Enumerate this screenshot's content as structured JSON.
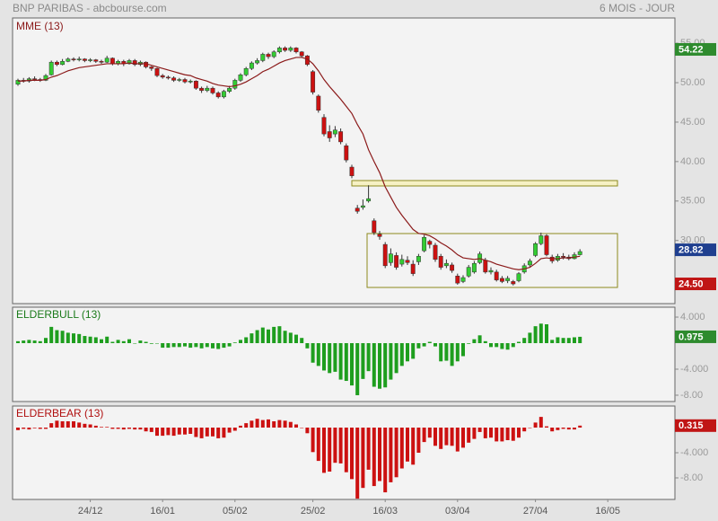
{
  "header": {
    "left": "BNP PARIBAS - abcbourse.com",
    "right": "6 MOIS - JOUR"
  },
  "chart_data": [
    {
      "type": "candlestick",
      "title": "MME (13)",
      "title_color": "#8b1a1a",
      "up_color": "#33cc33",
      "down_color": "#cc1111",
      "outline": "#333333",
      "ylim": [
        22,
        58.2
      ],
      "yticks": [
        {
          "value": 55,
          "label": "55.00"
        },
        {
          "value": 50,
          "label": "50.00"
        },
        {
          "value": 45,
          "label": "45.00"
        },
        {
          "value": 40,
          "label": "40.00"
        },
        {
          "value": 35,
          "label": "35.00"
        },
        {
          "value": 30,
          "label": "30.00"
        }
      ],
      "open": [
        49.8,
        50.3,
        50.2,
        50.5,
        50.4,
        50.3,
        51.0,
        52.6,
        52.3,
        52.7,
        53.0,
        52.9,
        53.0,
        52.8,
        52.9,
        52.7,
        52.6,
        53.1,
        52.4,
        52.7,
        52.4,
        52.8,
        52.3,
        52.6,
        52.0,
        51.8,
        50.9,
        50.7,
        50.6,
        50.3,
        50.4,
        50.1,
        50.2,
        49.3,
        49.0,
        49.3,
        48.7,
        48.2,
        48.9,
        49.3,
        50.3,
        51.0,
        51.8,
        52.5,
        52.8,
        53.6,
        53.3,
        53.9,
        54.4,
        54.1,
        54.4,
        53.9,
        53.4,
        51.4,
        48.3,
        45.6,
        43.8,
        43.5,
        43.8,
        42.0,
        39.3,
        34.1,
        34.2,
        35.0,
        32.5,
        30.8,
        29.5,
        27.2,
        28.1,
        27.0,
        27.5,
        27.0,
        27.3,
        28.7,
        29.9,
        29.4,
        28.0,
        26.8,
        26.9,
        25.5,
        24.8,
        25.5,
        26.0,
        27.2,
        27.5,
        26.0,
        26.0,
        25.2,
        24.9,
        24.8,
        24.9,
        26.0,
        26.9,
        28.1,
        29.6,
        30.6,
        27.9,
        27.5,
        28.0,
        27.9,
        27.7,
        28.2
      ],
      "high": [
        50.5,
        50.6,
        50.7,
        50.8,
        50.6,
        51.1,
        52.8,
        52.8,
        53.0,
        53.2,
        53.2,
        53.3,
        53.1,
        53.1,
        53.0,
        52.9,
        53.4,
        53.2,
        52.9,
        52.9,
        53.0,
        53.0,
        52.8,
        52.7,
        52.1,
        51.9,
        51.1,
        50.9,
        50.8,
        50.6,
        50.6,
        50.4,
        50.3,
        49.5,
        49.6,
        49.5,
        48.9,
        49.1,
        49.6,
        50.5,
        51.2,
        52.0,
        52.7,
        53.1,
        53.8,
        53.8,
        54.1,
        54.6,
        54.6,
        54.6,
        54.5,
        54.0,
        53.5,
        51.6,
        48.5,
        46.0,
        44.6,
        44.5,
        44.2,
        42.3,
        39.6,
        34.5,
        35.2,
        37.0,
        32.8,
        31.2,
        29.8,
        29.0,
        28.5,
        28.2,
        28.0,
        27.5,
        28.3,
        30.7,
        30.1,
        29.7,
        28.3,
        27.6,
        27.2,
        25.8,
        25.6,
        26.9,
        27.4,
        28.6,
        27.8,
        26.6,
        26.3,
        25.5,
        25.5,
        25.0,
        26.0,
        27.1,
        27.7,
        29.8,
        31.0,
        30.8,
        28.2,
        28.3,
        28.4,
        28.2,
        28.5,
        28.9
      ],
      "low": [
        49.6,
        50.0,
        50.0,
        50.2,
        50.1,
        50.2,
        50.9,
        52.1,
        52.2,
        52.6,
        52.7,
        52.7,
        52.6,
        52.6,
        52.5,
        52.4,
        52.5,
        52.2,
        52.2,
        52.1,
        52.3,
        52.1,
        52.1,
        51.8,
        51.5,
        50.7,
        50.5,
        50.4,
        50.1,
        50.1,
        49.9,
        49.9,
        49.1,
        48.7,
        48.8,
        48.5,
        48.0,
        48.0,
        48.7,
        49.1,
        50.1,
        50.8,
        51.6,
        52.3,
        52.6,
        53.0,
        53.1,
        53.7,
        53.9,
        53.9,
        53.7,
        53.2,
        52.1,
        48.5,
        46.2,
        43.2,
        42.5,
        43.1,
        42.2,
        39.9,
        37.9,
        33.4,
        33.9,
        34.8,
        30.7,
        30.1,
        26.5,
        26.8,
        26.3,
        26.7,
        26.9,
        25.5,
        26.9,
        28.5,
        29.0,
        27.3,
        26.3,
        26.5,
        25.9,
        24.4,
        24.6,
        25.3,
        25.8,
        27.0,
        25.8,
        25.7,
        24.8,
        24.6,
        24.6,
        24.3,
        24.7,
        25.8,
        26.6,
        27.9,
        29.4,
        28.0,
        27.1,
        27.3,
        27.6,
        27.5,
        27.6,
        28.1
      ],
      "close": [
        50.3,
        50.2,
        50.5,
        50.4,
        50.3,
        50.9,
        52.6,
        52.3,
        52.7,
        53.0,
        52.9,
        53.0,
        52.8,
        52.9,
        52.7,
        52.6,
        53.1,
        52.4,
        52.7,
        52.4,
        52.8,
        52.3,
        52.6,
        52.0,
        51.8,
        50.9,
        50.7,
        50.6,
        50.3,
        50.4,
        50.1,
        50.2,
        49.3,
        49.0,
        49.3,
        48.7,
        48.2,
        48.9,
        49.3,
        50.3,
        51.0,
        51.8,
        52.5,
        52.8,
        53.6,
        53.3,
        53.9,
        54.4,
        54.1,
        54.4,
        53.9,
        53.4,
        52.3,
        48.8,
        46.5,
        43.5,
        43.0,
        44.0,
        42.5,
        40.2,
        38.2,
        33.7,
        34.4,
        35.3,
        31.0,
        30.5,
        26.8,
        28.3,
        26.6,
        27.6,
        27.2,
        25.8,
        28.0,
        30.4,
        29.5,
        27.6,
        26.6,
        27.1,
        26.2,
        24.6,
        25.3,
        26.6,
        27.1,
        28.3,
        26.0,
        26.2,
        25.0,
        24.8,
        25.2,
        24.5,
        25.8,
        26.8,
        27.4,
        29.6,
        30.6,
        28.2,
        27.4,
        28.0,
        27.9,
        27.7,
        28.2,
        28.6
      ],
      "line": {
        "color": "#8b1a1a",
        "values": [
          50.2,
          50.2,
          50.3,
          50.3,
          50.3,
          50.4,
          50.7,
          50.9,
          51.2,
          51.5,
          51.7,
          51.9,
          52.0,
          52.1,
          52.2,
          52.3,
          52.4,
          52.4,
          52.4,
          52.4,
          52.5,
          52.4,
          52.4,
          52.4,
          52.2,
          52.0,
          51.8,
          51.6,
          51.4,
          51.2,
          51.0,
          50.9,
          50.6,
          50.4,
          50.2,
          49.9,
          49.7,
          49.6,
          49.5,
          49.6,
          49.8,
          50.1,
          50.5,
          50.9,
          51.4,
          51.7,
          52.1,
          52.5,
          52.8,
          53.0,
          53.2,
          53.2,
          53.0,
          52.4,
          51.5,
          50.4,
          49.5,
          48.7,
          47.9,
          47.0,
          46.1,
          44.7,
          43.5,
          41.5,
          40.0,
          38.6,
          36.8,
          35.5,
          34.2,
          33.2,
          32.3,
          31.4,
          30.9,
          30.8,
          30.6,
          30.2,
          29.7,
          29.3,
          28.8,
          28.2,
          27.8,
          27.7,
          27.6,
          27.7,
          27.5,
          27.3,
          27.0,
          26.8,
          26.6,
          26.4,
          26.3,
          26.4,
          26.6,
          27.1,
          27.7,
          27.8,
          27.7,
          27.7,
          27.8,
          27.8,
          27.9,
          28.0
        ]
      },
      "last_labels": [
        {
          "value": 54.22,
          "color": "#2e8b2e"
        },
        {
          "value": 28.82,
          "color": "#1f3f8f"
        },
        {
          "value": 24.5,
          "label": "24.50",
          "color": "#c01515"
        }
      ]
    },
    {
      "type": "bar",
      "title": "ELDERBULL (13)",
      "title_color": "#1a7a1a",
      "color": "#1e9e1e",
      "ylim": [
        -8.97,
        5.52
      ],
      "yticks": [
        {
          "value": 4,
          "label": "4.000"
        },
        {
          "value": -4,
          "label": "-4.000"
        },
        {
          "value": -8,
          "label": "-8.00"
        }
      ],
      "values": [
        0.3,
        0.4,
        0.5,
        0.4,
        0.3,
        0.8,
        2.5,
        2.0,
        1.9,
        1.6,
        1.5,
        1.4,
        1.1,
        1.0,
        0.9,
        0.6,
        1.0,
        0.2,
        0.5,
        0.3,
        0.6,
        0.0,
        0.4,
        0.2,
        -0.1,
        0.0,
        -0.7,
        -0.7,
        -0.6,
        -0.6,
        -0.5,
        -0.7,
        -0.6,
        -0.8,
        -0.6,
        -0.8,
        -0.9,
        -0.7,
        -0.5,
        0.1,
        0.5,
        0.9,
        1.5,
        2.0,
        2.4,
        2.1,
        2.5,
        2.6,
        1.9,
        1.6,
        1.3,
        0.8,
        -0.8,
        -3.0,
        -3.5,
        -4.2,
        -4.6,
        -4.4,
        -5.6,
        -5.8,
        -6.5,
        -8.0,
        -5.5,
        -4.3,
        -6.7,
        -7.0,
        -6.8,
        -5.6,
        -4.6,
        -3.5,
        -2.8,
        -2.4,
        -0.8,
        -0.5,
        0.2,
        -0.5,
        -2.8,
        -2.7,
        -3.5,
        -2.8,
        -2.0,
        -0.1,
        0.6,
        1.2,
        0.3,
        -0.6,
        -0.6,
        -0.9,
        -1.0,
        -0.6,
        0.2,
        0.8,
        1.6,
        2.6,
        3.0,
        2.9,
        0.5,
        0.9,
        0.8,
        0.8,
        0.9,
        0.975
      ],
      "last_labels": [
        {
          "value": 0.975,
          "color": "#2e8b2e"
        }
      ]
    },
    {
      "type": "bar",
      "title": "ELDERBEAR (13)",
      "title_color": "#b01010",
      "color": "#cc1111",
      "ylim": [
        -11.43,
        3.43
      ],
      "yticks": [
        {
          "value": -4,
          "label": "-4.000"
        },
        {
          "value": -8,
          "label": "-8.00"
        }
      ],
      "categories": [
        null,
        null,
        null,
        null,
        null,
        null,
        null,
        null,
        null,
        null,
        null,
        null,
        null,
        "24/12",
        null,
        null,
        null,
        null,
        null,
        null,
        null,
        null,
        null,
        null,
        null,
        null,
        "16/01",
        null,
        null,
        null,
        null,
        null,
        null,
        null,
        null,
        null,
        null,
        null,
        null,
        "05/02",
        null,
        null,
        null,
        null,
        null,
        null,
        null,
        null,
        null,
        null,
        null,
        null,
        null,
        "25/02",
        null,
        null,
        null,
        null,
        null,
        null,
        null,
        null,
        null,
        null,
        null,
        null,
        "16/03",
        null,
        null,
        null,
        null,
        null,
        null,
        null,
        null,
        null,
        null,
        null,
        null,
        "03/04",
        null,
        null,
        null,
        null,
        null,
        null,
        null,
        null,
        null,
        null,
        null,
        null,
        null,
        "27/04",
        null,
        null,
        null,
        null,
        null,
        null,
        null,
        null,
        null,
        null,
        null,
        null,
        "16/05"
      ],
      "values": [
        -0.4,
        -0.2,
        -0.3,
        -0.1,
        -0.2,
        -0.2,
        0.7,
        1.1,
        1.0,
        1.0,
        1.0,
        0.8,
        0.6,
        0.5,
        0.3,
        0.1,
        0.1,
        -0.2,
        -0.2,
        -0.3,
        -0.2,
        -0.3,
        -0.3,
        -0.6,
        -0.7,
        -1.3,
        -1.3,
        -1.2,
        -1.3,
        -1.1,
        -1.1,
        -1.0,
        -1.5,
        -1.7,
        -1.4,
        -1.4,
        -1.7,
        -1.6,
        -0.8,
        -0.5,
        0.3,
        0.7,
        1.1,
        1.4,
        1.2,
        1.3,
        1.0,
        1.2,
        1.1,
        0.9,
        0.5,
        0.0,
        -0.9,
        -3.9,
        -5.3,
        -7.2,
        -7.0,
        -5.6,
        -5.7,
        -7.1,
        -8.2,
        -11.3,
        -9.6,
        -6.7,
        -9.3,
        -8.5,
        -10.3,
        -8.7,
        -7.9,
        -6.5,
        -5.4,
        -5.9,
        -4.0,
        -2.3,
        -1.6,
        -2.9,
        -3.4,
        -2.8,
        -2.9,
        -3.8,
        -3.2,
        -2.4,
        -1.8,
        -0.7,
        -1.7,
        -1.6,
        -2.2,
        -2.2,
        -2.0,
        -2.1,
        -1.6,
        -0.6,
        0.0,
        0.8,
        1.7,
        0.2,
        -0.6,
        -0.4,
        -0.2,
        -0.3,
        -0.3,
        0.315,
        null,
        null,
        null,
        null,
        null
      ],
      "last_labels": [
        {
          "value": 0.315,
          "color": "#c01515"
        }
      ]
    }
  ]
}
